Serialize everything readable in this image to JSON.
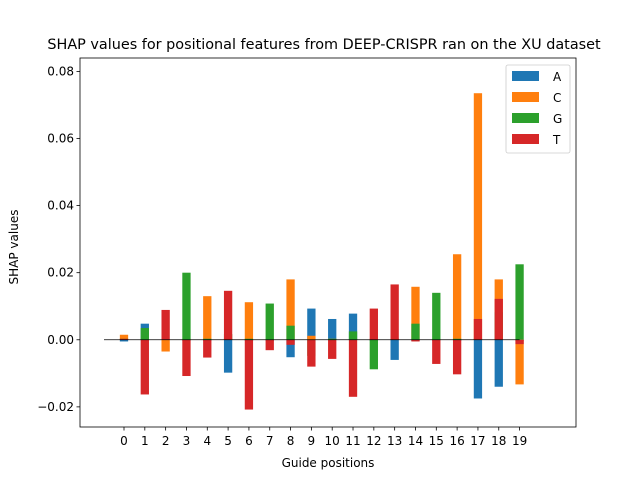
{
  "chart_data": {
    "type": "bar",
    "stacked": true,
    "title": "SHAP values for positional features from DEEP-CRISPR ran on the XU dataset",
    "xlabel": "Guide positions",
    "ylabel": "SHAP values",
    "categories": [
      "0",
      "1",
      "2",
      "3",
      "4",
      "5",
      "6",
      "7",
      "8",
      "9",
      "10",
      "11",
      "12",
      "13",
      "14",
      "15",
      "16",
      "17",
      "18",
      "19"
    ],
    "ylim": [
      -0.026,
      0.084
    ],
    "yticks": [
      -0.02,
      0.0,
      0.02,
      0.04,
      0.06,
      0.08
    ],
    "ytick_labels": [
      "−0.02",
      "0.00",
      "0.02",
      "0.04",
      "0.06",
      "0.08"
    ],
    "grid": false,
    "legend_position": "top-right",
    "zero_line": true,
    "series": [
      {
        "name": "A",
        "color": "#1f77b4",
        "values": [
          -0.0005,
          0.0048,
          0.0001,
          -0.0003,
          -0.0003,
          -0.0098,
          -0.0003,
          -0.0003,
          -0.0052,
          0.0093,
          0.0062,
          0.0078,
          -0.0003,
          -0.006,
          -0.0003,
          -0.0003,
          -0.0003,
          -0.0175,
          -0.014,
          -0.0003
        ]
      },
      {
        "name": "C",
        "color": "#ff7f0e",
        "values": [
          0.0015,
          0.0003,
          -0.0035,
          0.0003,
          0.013,
          0.0003,
          0.0112,
          0.0003,
          0.018,
          0.0012,
          0.0003,
          0.0003,
          0.0003,
          0.0003,
          0.0158,
          0.0003,
          0.0255,
          0.0735,
          0.018,
          -0.0133
        ]
      },
      {
        "name": "G",
        "color": "#2ca02c",
        "values": [
          0.0003,
          0.0035,
          0.0001,
          0.02,
          0.0003,
          0.0017,
          0.0003,
          0.0108,
          0.0042,
          -0.0048,
          0.0003,
          0.0025,
          -0.0088,
          0.0003,
          0.0048,
          0.014,
          0.0003,
          0.0003,
          0.0082,
          0.0225
        ]
      },
      {
        "name": "T",
        "color": "#d62728",
        "values": [
          0.0003,
          -0.0163,
          0.0089,
          -0.0108,
          -0.0053,
          0.0146,
          -0.0208,
          -0.0031,
          -0.0015,
          -0.008,
          -0.0057,
          -0.017,
          0.0093,
          0.0165,
          -0.0005,
          -0.0072,
          -0.0103,
          0.0062,
          0.0122,
          -0.0013
        ]
      }
    ]
  }
}
